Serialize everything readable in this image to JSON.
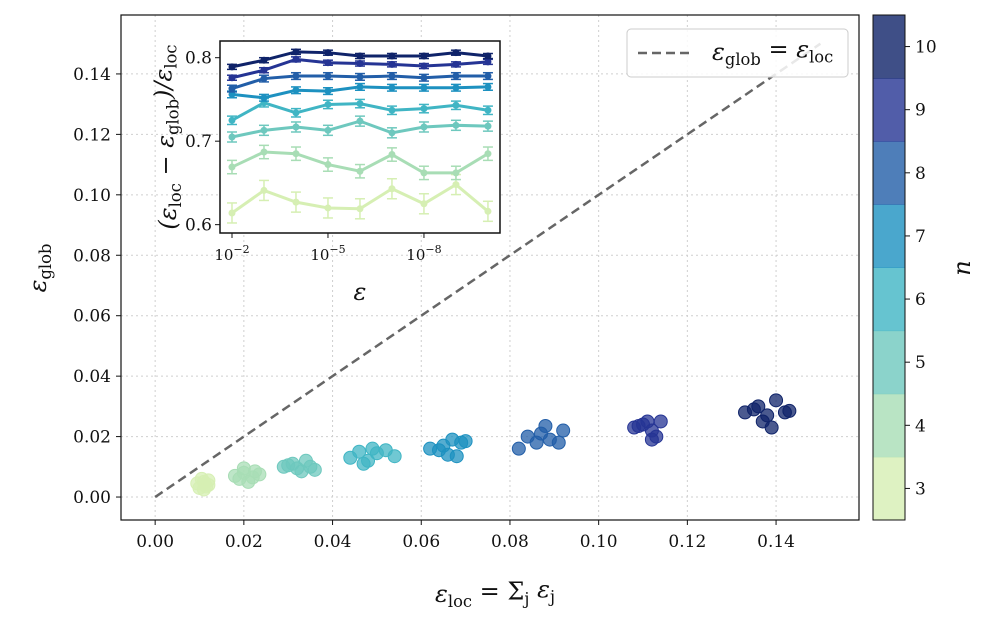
{
  "chart_data": [
    {
      "type": "scatter",
      "xlabel": {
        "sym": "ε",
        "sub": "loc",
        "rest": " = Σ",
        "sub2": "j",
        "rest2": " ε",
        "sub3": "j"
      },
      "ylabel": {
        "sym": "ε",
        "sub": "glob"
      },
      "xlim": [
        -0.0077,
        0.1587
      ],
      "ylim": [
        -0.0076,
        0.1595
      ],
      "xticks": [
        "0.00",
        "0.02",
        "0.04",
        "0.06",
        "0.08",
        "0.10",
        "0.12",
        "0.14"
      ],
      "yticks": [
        "0.00",
        "0.02",
        "0.04",
        "0.06",
        "0.08",
        "0.10",
        "0.12",
        "0.14"
      ],
      "grid": true,
      "legend": {
        "placement": "top-right",
        "label": {
          "a": "ε",
          "asub": "glob",
          "eq": " = ε",
          "bsub": "loc"
        }
      },
      "reference_line": {
        "style": "dashed",
        "color": "#666666",
        "x": [
          0,
          0.15
        ],
        "y": [
          0,
          0.15
        ]
      },
      "colorbar": {
        "label": "n",
        "ticks": [
          "3",
          "4",
          "5",
          "6",
          "7",
          "8",
          "9",
          "10"
        ],
        "range": [
          3,
          10
        ]
      },
      "series": [
        {
          "n": 3,
          "color": "#d6efb3",
          "points": [
            [
              0.01,
              0.003
            ],
            [
              0.011,
              0.005
            ],
            [
              0.012,
              0.004
            ],
            [
              0.0105,
              0.006
            ],
            [
              0.0115,
              0.0035
            ],
            [
              0.0095,
              0.0045
            ],
            [
              0.011,
              0.0025
            ],
            [
              0.012,
              0.0055
            ]
          ]
        },
        {
          "n": 4,
          "color": "#a8ddb5",
          "points": [
            [
              0.018,
              0.007
            ],
            [
              0.02,
              0.008
            ],
            [
              0.022,
              0.0065
            ],
            [
              0.0235,
              0.0075
            ],
            [
              0.021,
              0.005
            ],
            [
              0.019,
              0.006
            ],
            [
              0.02,
              0.0095
            ],
            [
              0.0225,
              0.0085
            ]
          ]
        },
        {
          "n": 5,
          "color": "#6ec8be",
          "points": [
            [
              0.029,
              0.01
            ],
            [
              0.031,
              0.011
            ],
            [
              0.033,
              0.0085
            ],
            [
              0.035,
              0.01
            ],
            [
              0.034,
              0.012
            ],
            [
              0.032,
              0.0095
            ],
            [
              0.036,
              0.009
            ],
            [
              0.03,
              0.0105
            ]
          ]
        },
        {
          "n": 6,
          "color": "#40b5c4",
          "points": [
            [
              0.044,
              0.013
            ],
            [
              0.046,
              0.015
            ],
            [
              0.048,
              0.012
            ],
            [
              0.05,
              0.0145
            ],
            [
              0.052,
              0.0155
            ],
            [
              0.054,
              0.0135
            ],
            [
              0.047,
              0.011
            ],
            [
              0.049,
              0.016
            ]
          ]
        },
        {
          "n": 7,
          "color": "#1d91c0",
          "points": [
            [
              0.062,
              0.016
            ],
            [
              0.065,
              0.017
            ],
            [
              0.067,
              0.019
            ],
            [
              0.069,
              0.018
            ],
            [
              0.066,
              0.014
            ],
            [
              0.064,
              0.0155
            ],
            [
              0.068,
              0.0135
            ],
            [
              0.07,
              0.0185
            ]
          ]
        },
        {
          "n": 8,
          "color": "#225ea8",
          "points": [
            [
              0.082,
              0.016
            ],
            [
              0.084,
              0.02
            ],
            [
              0.087,
              0.021
            ],
            [
              0.089,
              0.019
            ],
            [
              0.091,
              0.018
            ],
            [
              0.092,
              0.022
            ],
            [
              0.086,
              0.018
            ],
            [
              0.088,
              0.0235
            ]
          ]
        },
        {
          "n": 9,
          "color": "#253494",
          "points": [
            [
              0.108,
              0.023
            ],
            [
              0.11,
              0.024
            ],
            [
              0.112,
              0.022
            ],
            [
              0.114,
              0.025
            ],
            [
              0.113,
              0.02
            ],
            [
              0.111,
              0.025
            ],
            [
              0.109,
              0.0235
            ],
            [
              0.112,
              0.019
            ]
          ]
        },
        {
          "n": 10,
          "color": "#0f2369",
          "points": [
            [
              0.133,
              0.028
            ],
            [
              0.136,
              0.03
            ],
            [
              0.138,
              0.027
            ],
            [
              0.14,
              0.032
            ],
            [
              0.142,
              0.028
            ],
            [
              0.137,
              0.025
            ],
            [
              0.139,
              0.023
            ],
            [
              0.135,
              0.029
            ],
            [
              0.143,
              0.0285
            ]
          ]
        }
      ]
    },
    {
      "type": "line",
      "xscale": "log",
      "xinverted": true,
      "xlabel": "ε",
      "ylabel": {
        "a": "(ε",
        "asub": "loc",
        "b": " − ε",
        "bsub": "glob",
        "c": ")/ε",
        "csub": "loc"
      },
      "x": [
        0.01,
        0.001,
        0.0001,
        1e-05,
        1e-06,
        1e-07,
        1e-08,
        1e-09,
        1e-10
      ],
      "xlim": [
        0.0237,
        4.2e-11
      ],
      "ylim": [
        0.59,
        0.82
      ],
      "xticks": [
        {
          "base": "10",
          "exp": "−2",
          "value": 0.01
        },
        {
          "base": "10",
          "exp": "−5",
          "value": 1e-05
        },
        {
          "base": "10",
          "exp": "−8",
          "value": 1e-08
        }
      ],
      "yticks": [
        "0.6",
        "0.7",
        "0.8"
      ],
      "grid": true,
      "series": [
        {
          "n": 3,
          "color": "#d6efb3",
          "err": 0.012,
          "values": [
            0.614,
            0.641,
            0.627,
            0.62,
            0.619,
            0.643,
            0.625,
            0.648,
            0.616
          ]
        },
        {
          "n": 4,
          "color": "#a8ddb5",
          "err": 0.008,
          "values": [
            0.669,
            0.687,
            0.685,
            0.672,
            0.664,
            0.684,
            0.662,
            0.662,
            0.685
          ]
        },
        {
          "n": 5,
          "color": "#6ec8be",
          "err": 0.006,
          "values": [
            0.705,
            0.713,
            0.717,
            0.713,
            0.724,
            0.71,
            0.717,
            0.719,
            0.718
          ]
        },
        {
          "n": 6,
          "color": "#40b5c4",
          "err": 0.005,
          "values": [
            0.725,
            0.746,
            0.734,
            0.744,
            0.745,
            0.737,
            0.739,
            0.743,
            0.737
          ]
        },
        {
          "n": 7,
          "color": "#1d91c0",
          "err": 0.004,
          "values": [
            0.756,
            0.752,
            0.761,
            0.76,
            0.765,
            0.764,
            0.764,
            0.764,
            0.765
          ]
        },
        {
          "n": 8,
          "color": "#225ea8",
          "err": 0.004,
          "values": [
            0.763,
            0.775,
            0.778,
            0.778,
            0.777,
            0.778,
            0.776,
            0.778,
            0.778
          ]
        },
        {
          "n": 9,
          "color": "#253494",
          "err": 0.003,
          "values": [
            0.776,
            0.785,
            0.798,
            0.794,
            0.793,
            0.792,
            0.79,
            0.792,
            0.795
          ]
        },
        {
          "n": 10,
          "color": "#0f2369",
          "err": 0.003,
          "values": [
            0.789,
            0.797,
            0.807,
            0.806,
            0.802,
            0.802,
            0.802,
            0.806,
            0.802
          ]
        }
      ]
    }
  ]
}
